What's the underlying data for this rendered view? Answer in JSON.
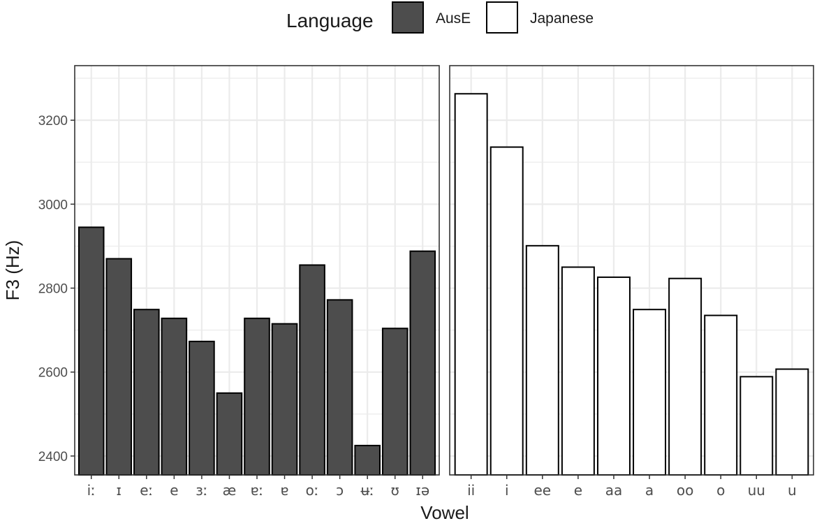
{
  "chart_data": {
    "type": "bar",
    "xlabel": "Vowel",
    "ylabel": "F3 (Hz)",
    "ylim": [
      2355,
      3330
    ],
    "yticks": [
      2400,
      2600,
      2800,
      3000,
      3200
    ],
    "grid": true,
    "legend": {
      "title": "Language",
      "position": "top",
      "entries": [
        {
          "name": "AusE",
          "color": "#4d4d4d"
        },
        {
          "name": "Japanese",
          "color": "#ffffff"
        }
      ]
    },
    "facets": [
      {
        "series": "AusE",
        "fill": "#4d4d4d",
        "categories": [
          "iː",
          "ɪ",
          "eː",
          "e",
          "ɜː",
          "æ",
          "ɐː",
          "ɐ",
          "oː",
          "ɔ",
          "ʉː",
          "ʊ",
          "ɪə"
        ],
        "values": [
          2945,
          2870,
          2749,
          2728,
          2673,
          2550,
          2728,
          2715,
          2855,
          2772,
          2425,
          2704,
          2888
        ]
      },
      {
        "series": "Japanese",
        "fill": "#ffffff",
        "categories": [
          "ii",
          "i",
          "ee",
          "e",
          "aa",
          "a",
          "oo",
          "o",
          "uu",
          "u"
        ],
        "values": [
          3263,
          3136,
          2901,
          2850,
          2826,
          2749,
          2823,
          2735,
          2589,
          2607
        ]
      }
    ]
  }
}
